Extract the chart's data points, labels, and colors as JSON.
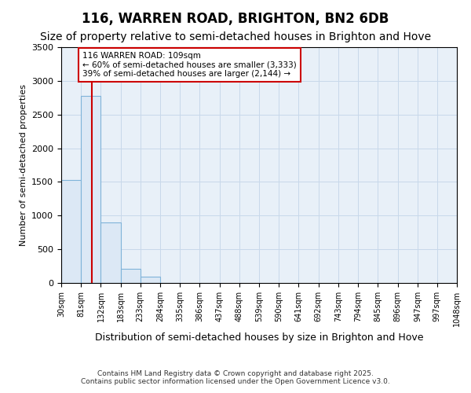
{
  "title": "116, WARREN ROAD, BRIGHTON, BN2 6DB",
  "subtitle": "Size of property relative to semi-detached houses in Brighton and Hove",
  "xlabel": "Distribution of semi-detached houses by size in Brighton and Hove",
  "ylabel": "Number of semi-detached properties",
  "bin_edges": [
    30,
    81,
    132,
    183,
    233,
    284,
    335,
    386,
    437,
    488,
    539,
    590,
    641,
    692,
    743,
    794,
    845,
    896,
    947,
    997,
    1048
  ],
  "bar_heights": [
    1530,
    2780,
    900,
    210,
    95,
    5,
    0,
    0,
    0,
    0,
    0,
    0,
    0,
    0,
    0,
    0,
    0,
    0,
    0,
    0
  ],
  "bar_color": "#dce8f5",
  "bar_edge_color": "#7fb3d9",
  "grid_color": "#c8d8ea",
  "property_size": 109,
  "red_line_color": "#cc0000",
  "annotation_text": "116 WARREN ROAD: 109sqm\n← 60% of semi-detached houses are smaller (3,333)\n39% of semi-detached houses are larger (2,144) →",
  "annotation_box_color": "#ffffff",
  "annotation_box_edge": "#cc0000",
  "footer_line1": "Contains HM Land Registry data © Crown copyright and database right 2025.",
  "footer_line2": "Contains public sector information licensed under the Open Government Licence v3.0.",
  "ylim": [
    0,
    3500
  ],
  "bg_color": "#ffffff",
  "plot_bg_color": "#e8f0f8",
  "title_fontsize": 12,
  "subtitle_fontsize": 10
}
